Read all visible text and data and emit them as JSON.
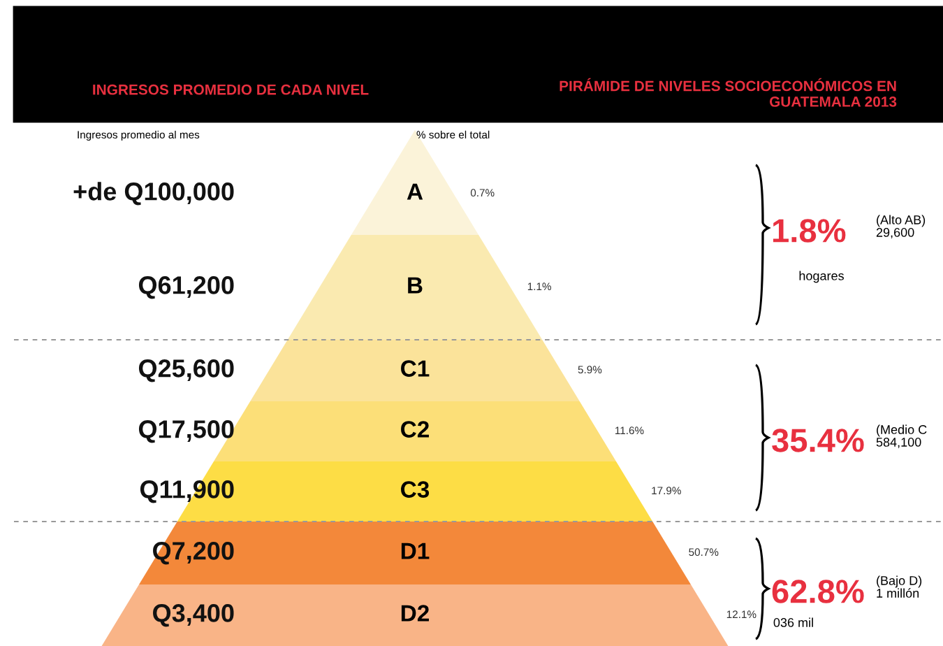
{
  "chart_data": {
    "type": "other",
    "title": "PIRÁMIDE DE NIVELES SOCIOECONÓMICOS EN\nGUATEMALA 2013",
    "subtitle": "INGRESOS PROMEDIO DE CADA NIVEL",
    "xlabel": "Ingresos promedio al mes",
    "ylabel": "% sobre el total",
    "categories": [
      "A",
      "B",
      "C1",
      "C2",
      "C3",
      "D1",
      "D2"
    ],
    "colors": [
      "#fbf3d9",
      "#faeab0",
      "#fbe39a",
      "#fcdf78",
      "#fddd45",
      "#f3883a",
      "#f9b487"
    ],
    "values": [
      0.7,
      1.1,
      5.9,
      11.6,
      17.9,
      50.7,
      12.1
    ],
    "value_labels": [
      "0.7%",
      "1.1%",
      "5.9%",
      "11.6%",
      "17.9%",
      "50.7%",
      "12.1%"
    ],
    "annotations": [
      {
        "text": "+de Q100,000",
        "y": "A"
      },
      {
        "text": "Q61,200",
        "y": "B"
      },
      {
        "text": "Q25,600",
        "y": "C1"
      },
      {
        "text": "Q17,500",
        "y": "C2"
      },
      {
        "text": "Q11,900",
        "y": "C3"
      },
      {
        "text": "Q7,200",
        "y": "D1"
      },
      {
        "text": "Q3,400",
        "y": "D2"
      },
      "1.8%",
      "(Alto AB)",
      "29,600",
      "hogares",
      "35.4%",
      "(Medio C",
      "584,100",
      "62.8%",
      "(Bajo D)",
      "1 millón",
      "036 mil"
    ]
  }
}
